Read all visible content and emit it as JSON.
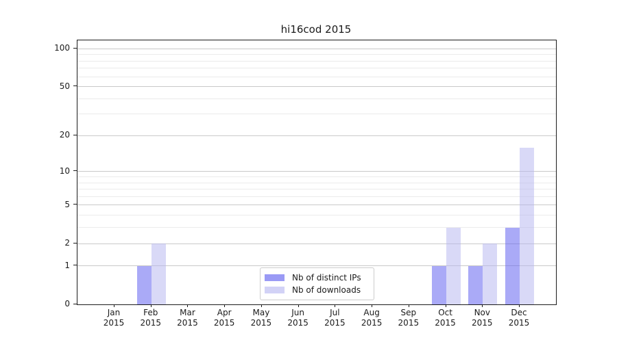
{
  "chart_data": {
    "type": "bar",
    "title": "hi16cod 2015",
    "categories": [
      "Jan 2015",
      "Feb 2015",
      "Mar 2015",
      "Apr 2015",
      "May 2015",
      "Jun 2015",
      "Jul 2015",
      "Aug 2015",
      "Sep 2015",
      "Oct 2015",
      "Nov 2015",
      "Dec 2015"
    ],
    "series": [
      {
        "name": "Nb of distinct IPs",
        "color": "#6464f0",
        "alpha": 0.55,
        "color_on_white": "#aaaaf7",
        "values": [
          0,
          1,
          0,
          0,
          0,
          0,
          0,
          0,
          0,
          1,
          1,
          3
        ]
      },
      {
        "name": "Nb of downloads",
        "color": "#b4b4f0",
        "alpha": 0.5,
        "color_on_white": "#d9d9f7",
        "values": [
          0,
          2,
          0,
          0,
          0,
          0,
          0,
          0,
          0,
          3,
          2,
          16
        ]
      }
    ],
    "y_scale": "log1p",
    "y_tick_values": [
      0,
      1,
      2,
      5,
      10,
      20,
      50,
      100
    ],
    "y_tick_labels": [
      "0",
      "1",
      "2",
      "5",
      "10",
      "20",
      "50",
      "100"
    ],
    "y_minor_gridlines": [
      1,
      2,
      3,
      4,
      5,
      6,
      7,
      8,
      9,
      10,
      20,
      30,
      40,
      50,
      60,
      70,
      80,
      90,
      100
    ],
    "ylim": [
      0,
      110
    ],
    "xlabel": "",
    "ylabel": "",
    "grid": "horizontal",
    "legend_position": "lower center",
    "colors": {
      "axis": "#1a1a1a",
      "grid_minor": "#ebebeb",
      "grid_major": "#c9c9c9",
      "legend_border": "#cccccc"
    }
  }
}
